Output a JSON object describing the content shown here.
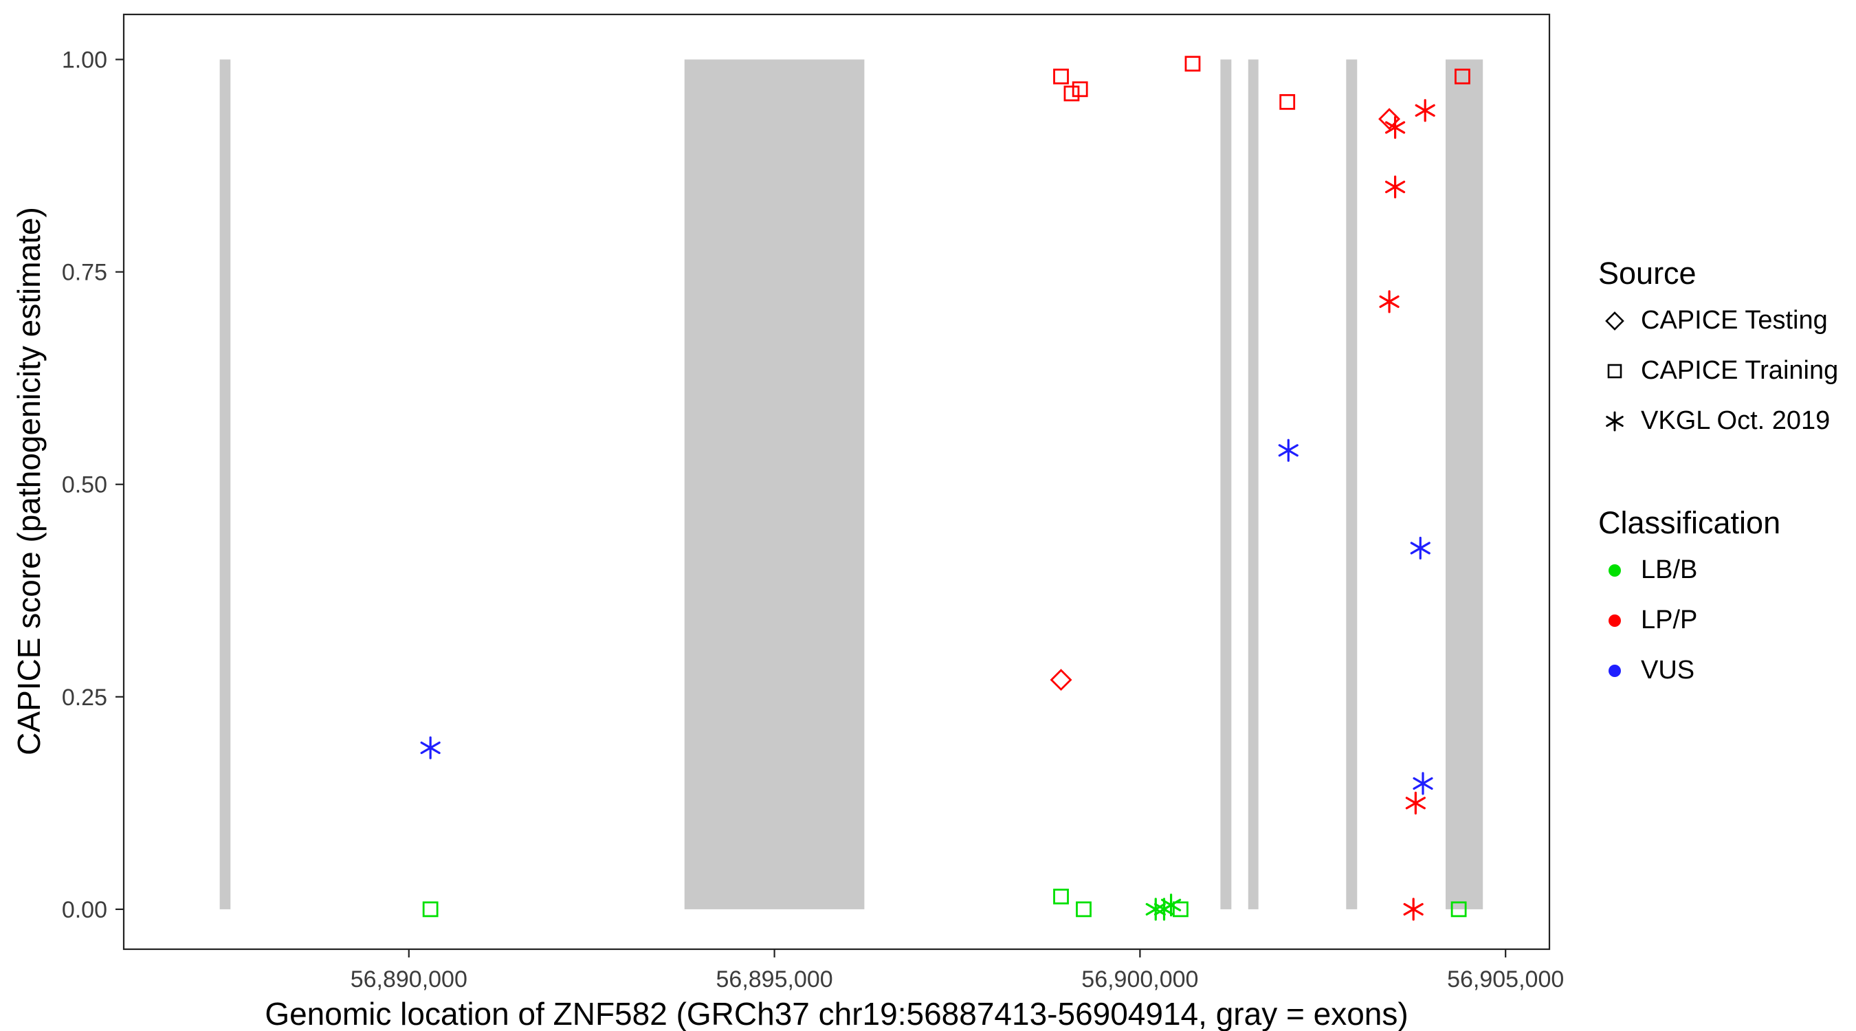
{
  "chart_data": {
    "type": "scatter",
    "title": "",
    "xlabel": "Genomic location of ZNF582 (GRCh37 chr19:56887413-56904914, gray = exons)",
    "ylabel": "CAPICE score (pathogenicity estimate)",
    "xlim": [
      56886100,
      56905600
    ],
    "ylim": [
      -0.047,
      1.053
    ],
    "grid": false,
    "x_ticks": [
      {
        "value": 56890000,
        "label": "56,890,000"
      },
      {
        "value": 56895000,
        "label": "56,895,000"
      },
      {
        "value": 56900000,
        "label": "56,900,000"
      },
      {
        "value": 56905000,
        "label": "56,905,000"
      }
    ],
    "y_ticks": [
      {
        "value": 0.0,
        "label": "0.00"
      },
      {
        "value": 0.25,
        "label": "0.25"
      },
      {
        "value": 0.5,
        "label": "0.50"
      },
      {
        "value": 0.75,
        "label": "0.75"
      },
      {
        "value": 1.0,
        "label": "1.00"
      }
    ],
    "exons": [
      {
        "start": 56887413,
        "end": 56887560
      },
      {
        "start": 56893770,
        "end": 56896230
      },
      {
        "start": 56901100,
        "end": 56901250
      },
      {
        "start": 56901480,
        "end": 56901620
      },
      {
        "start": 56902820,
        "end": 56902970
      },
      {
        "start": 56904180,
        "end": 56904690
      }
    ],
    "exon_y_range": [
      0.0,
      1.0
    ],
    "points": [
      {
        "x": 56898920,
        "y": 0.98,
        "source": "CAPICE Training",
        "classification": "LP/P"
      },
      {
        "x": 56899065,
        "y": 0.96,
        "source": "CAPICE Training",
        "classification": "LP/P"
      },
      {
        "x": 56899180,
        "y": 0.965,
        "source": "CAPICE Training",
        "classification": "LP/P"
      },
      {
        "x": 56900720,
        "y": 0.995,
        "source": "CAPICE Training",
        "classification": "LP/P"
      },
      {
        "x": 56902015,
        "y": 0.95,
        "source": "CAPICE Training",
        "classification": "LP/P"
      },
      {
        "x": 56904410,
        "y": 0.98,
        "source": "CAPICE Training",
        "classification": "LP/P"
      },
      {
        "x": 56898920,
        "y": 0.27,
        "source": "CAPICE Testing",
        "classification": "LP/P"
      },
      {
        "x": 56903410,
        "y": 0.93,
        "source": "CAPICE Testing",
        "classification": "LP/P"
      },
      {
        "x": 56903490,
        "y": 0.92,
        "source": "VKGL Oct. 2019",
        "classification": "LP/P"
      },
      {
        "x": 56903900,
        "y": 0.94,
        "source": "VKGL Oct. 2019",
        "classification": "LP/P"
      },
      {
        "x": 56903490,
        "y": 0.85,
        "source": "VKGL Oct. 2019",
        "classification": "LP/P"
      },
      {
        "x": 56903410,
        "y": 0.715,
        "source": "VKGL Oct. 2019",
        "classification": "LP/P"
      },
      {
        "x": 56903770,
        "y": 0.125,
        "source": "VKGL Oct. 2019",
        "classification": "LP/P"
      },
      {
        "x": 56903740,
        "y": 0.0,
        "source": "VKGL Oct. 2019",
        "classification": "LP/P"
      },
      {
        "x": 56890295,
        "y": 0.19,
        "source": "VKGL Oct. 2019",
        "classification": "VUS"
      },
      {
        "x": 56902030,
        "y": 0.54,
        "source": "VKGL Oct. 2019",
        "classification": "VUS"
      },
      {
        "x": 56903835,
        "y": 0.425,
        "source": "VKGL Oct. 2019",
        "classification": "VUS"
      },
      {
        "x": 56903870,
        "y": 0.148,
        "source": "VKGL Oct. 2019",
        "classification": "VUS"
      },
      {
        "x": 56890295,
        "y": 0.0,
        "source": "CAPICE Training",
        "classification": "LB/B"
      },
      {
        "x": 56898920,
        "y": 0.015,
        "source": "CAPICE Training",
        "classification": "LB/B"
      },
      {
        "x": 56899230,
        "y": 0.0,
        "source": "CAPICE Training",
        "classification": "LB/B"
      },
      {
        "x": 56900555,
        "y": 0.0,
        "source": "CAPICE Training",
        "classification": "LB/B"
      },
      {
        "x": 56904360,
        "y": 0.0,
        "source": "CAPICE Training",
        "classification": "LB/B"
      },
      {
        "x": 56900215,
        "y": 0.0,
        "source": "VKGL Oct. 2019",
        "classification": "LB/B"
      },
      {
        "x": 56900330,
        "y": 0.0,
        "source": "VKGL Oct. 2019",
        "classification": "LB/B"
      },
      {
        "x": 56900425,
        "y": 0.005,
        "source": "VKGL Oct. 2019",
        "classification": "LB/B"
      }
    ],
    "legend": {
      "position": "right",
      "source_title": "Source",
      "source_items": [
        {
          "label": "CAPICE Testing",
          "shape": "diamond"
        },
        {
          "label": "CAPICE Training",
          "shape": "square"
        },
        {
          "label": "VKGL Oct. 2019",
          "shape": "asterisk"
        }
      ],
      "classification_title": "Classification",
      "classification_items": [
        {
          "label": "LB/B",
          "color": "#00e000"
        },
        {
          "label": "LP/P",
          "color": "#ff0000"
        },
        {
          "label": "VUS",
          "color": "#1f1fff"
        }
      ]
    },
    "colors": {
      "LB/B": "#00e000",
      "LP/P": "#ff0000",
      "VUS": "#1f1fff",
      "exon": "#c9c9c9",
      "axis_text": "#3c3c3c",
      "panel_border": "#222222"
    },
    "shape_by_source": {
      "CAPICE Testing": "diamond",
      "CAPICE Training": "square",
      "VKGL Oct. 2019": "asterisk"
    }
  }
}
